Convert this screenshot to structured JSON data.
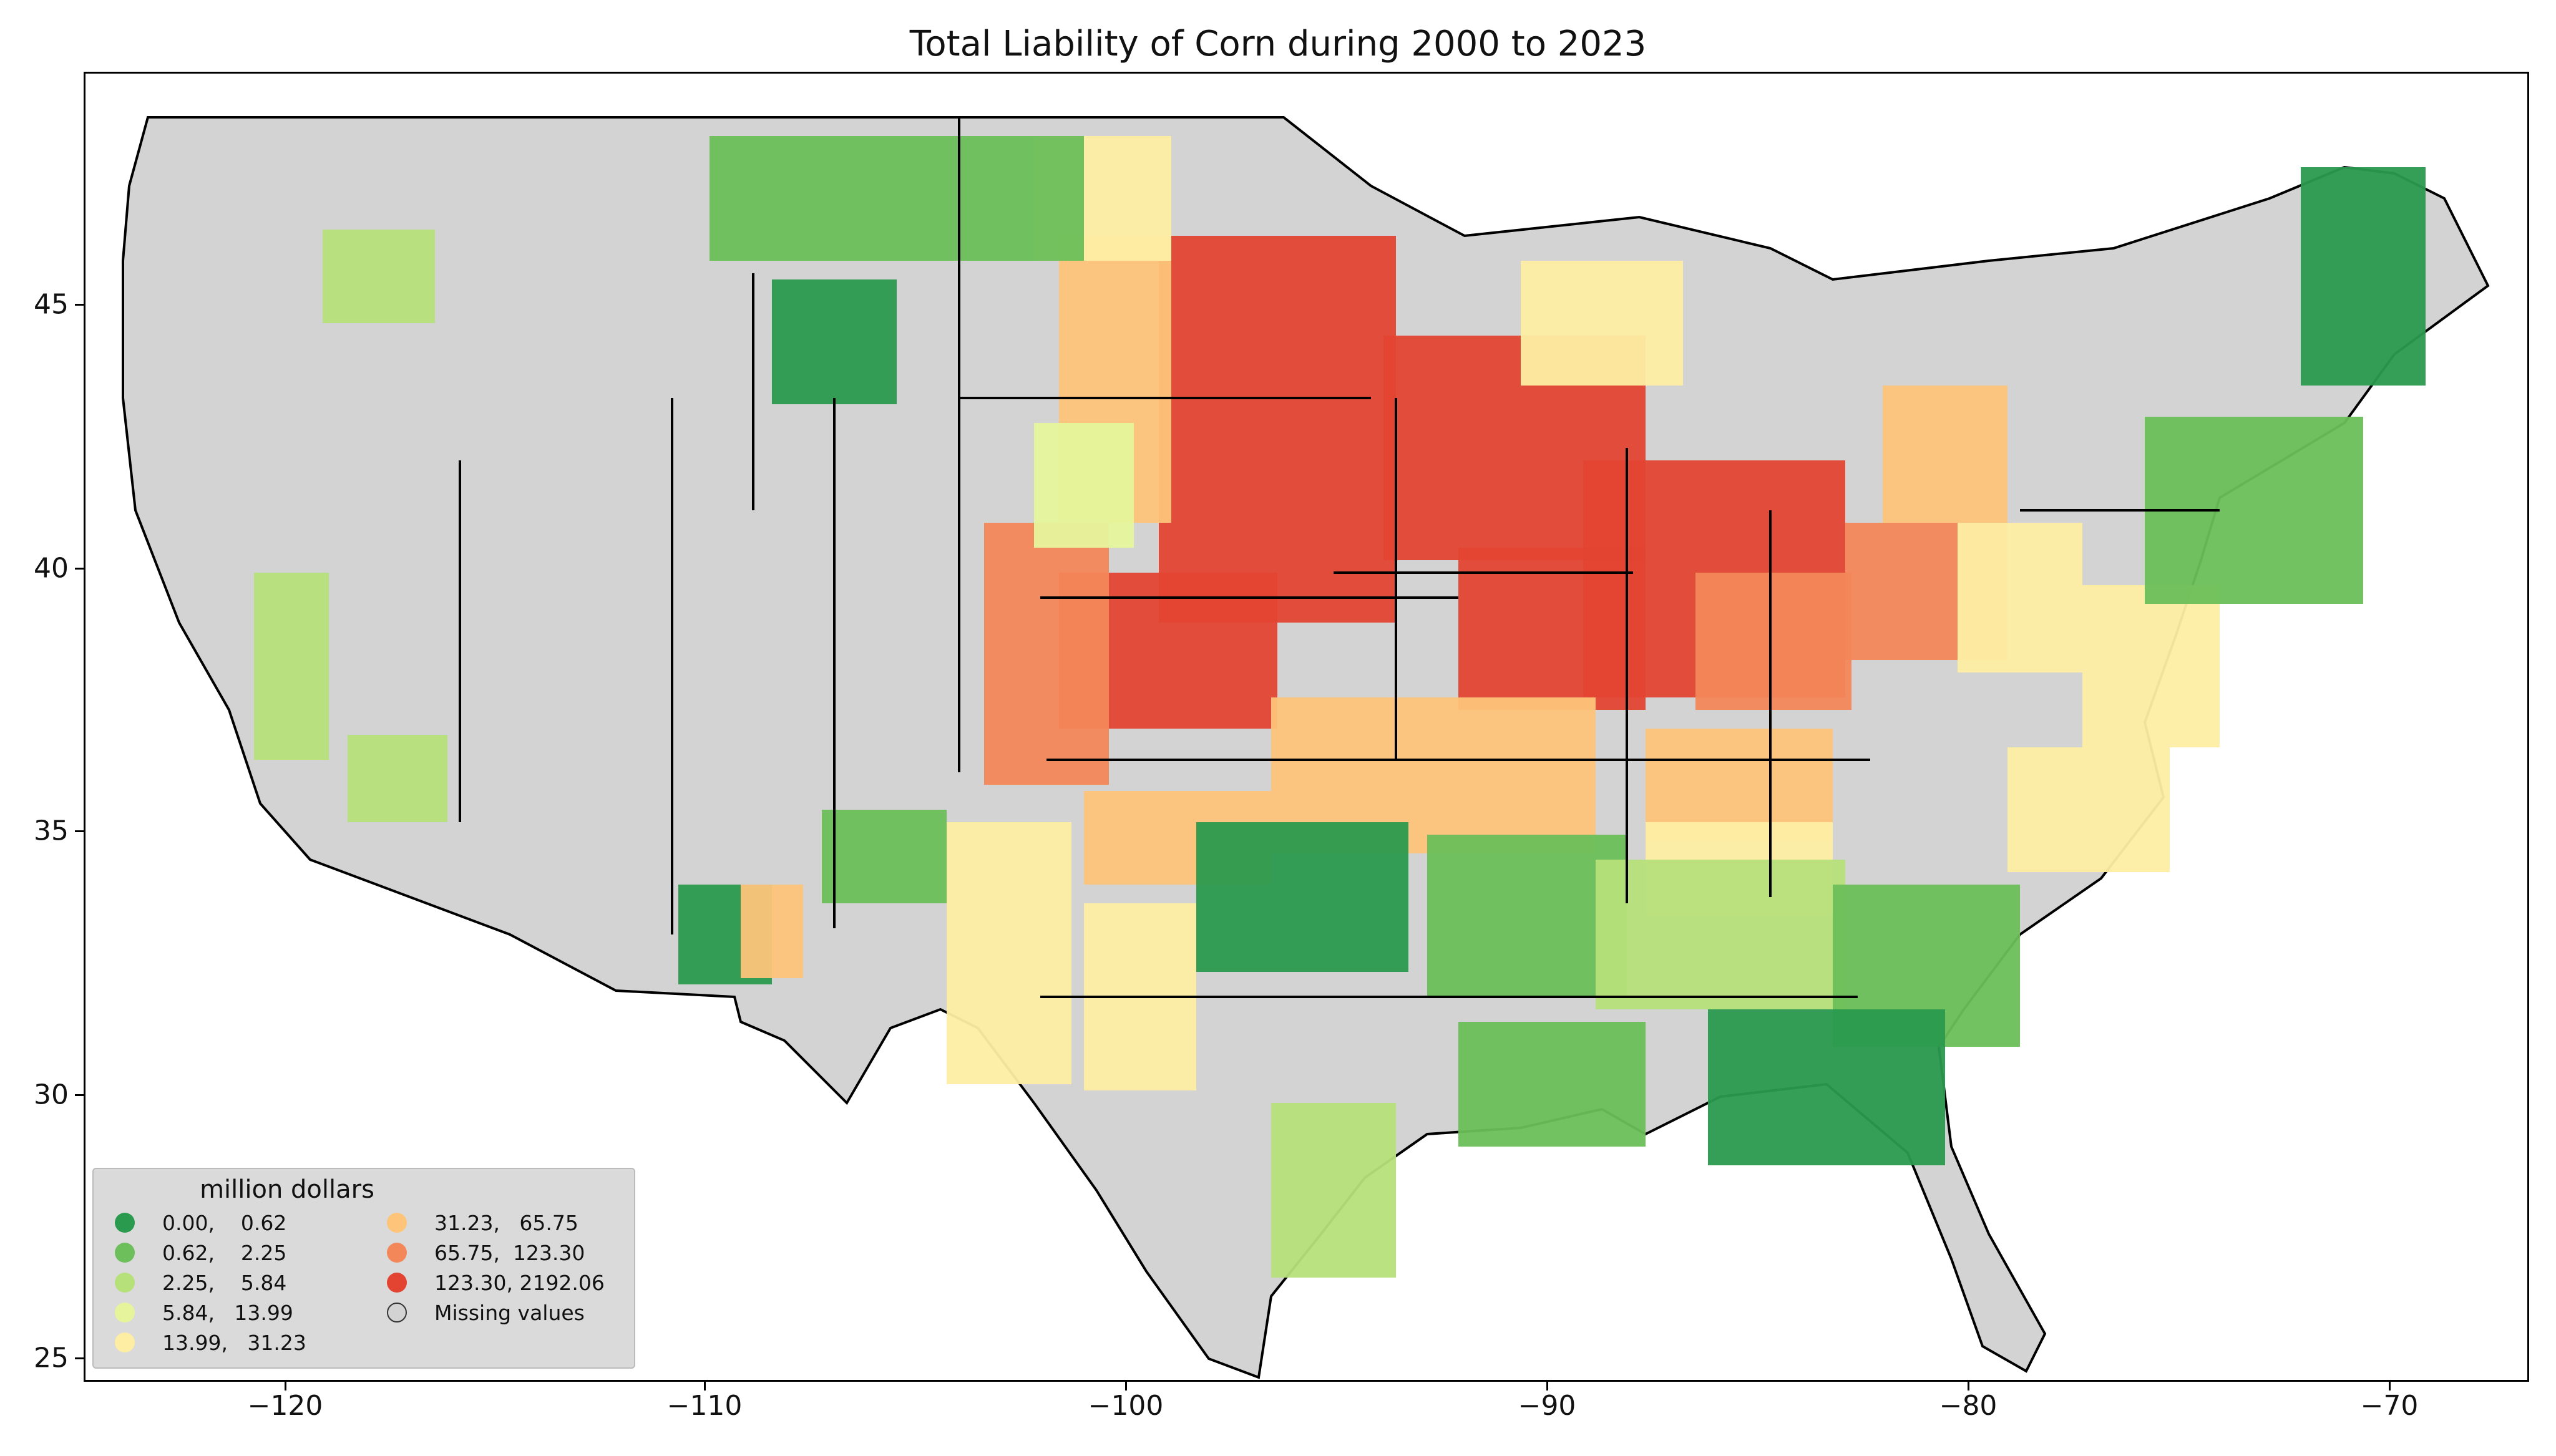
{
  "title": "Total Liability of Corn during 2000 to 2023",
  "x_ticks": [
    "−120",
    "−110",
    "−100",
    "−90",
    "−80",
    "−70"
  ],
  "y_ticks": [
    "25",
    "30",
    "35",
    "40",
    "45"
  ],
  "legend": {
    "title": "million dollars",
    "items": [
      {
        "label": "0.00,    0.62",
        "color": "#2a9a4e"
      },
      {
        "label": "0.62,    2.25",
        "color": "#6cbf5a"
      },
      {
        "label": "2.25,    5.84",
        "color": "#b6e07a"
      },
      {
        "label": "5.84,   13.99",
        "color": "#e6f59b"
      },
      {
        "label": "13.99,   31.23",
        "color": "#fdeea3"
      },
      {
        "label": "31.23,   65.75",
        "color": "#fdc47a"
      },
      {
        "label": "65.75,  123.30",
        "color": "#f3875a"
      },
      {
        "label": "123.30, 2192.06",
        "color": "#e34432"
      },
      {
        "label": "Missing values",
        "color": "#d3d3d3"
      }
    ]
  },
  "colors": {
    "missing": "#d3d3d3",
    "border": "#000000"
  }
}
